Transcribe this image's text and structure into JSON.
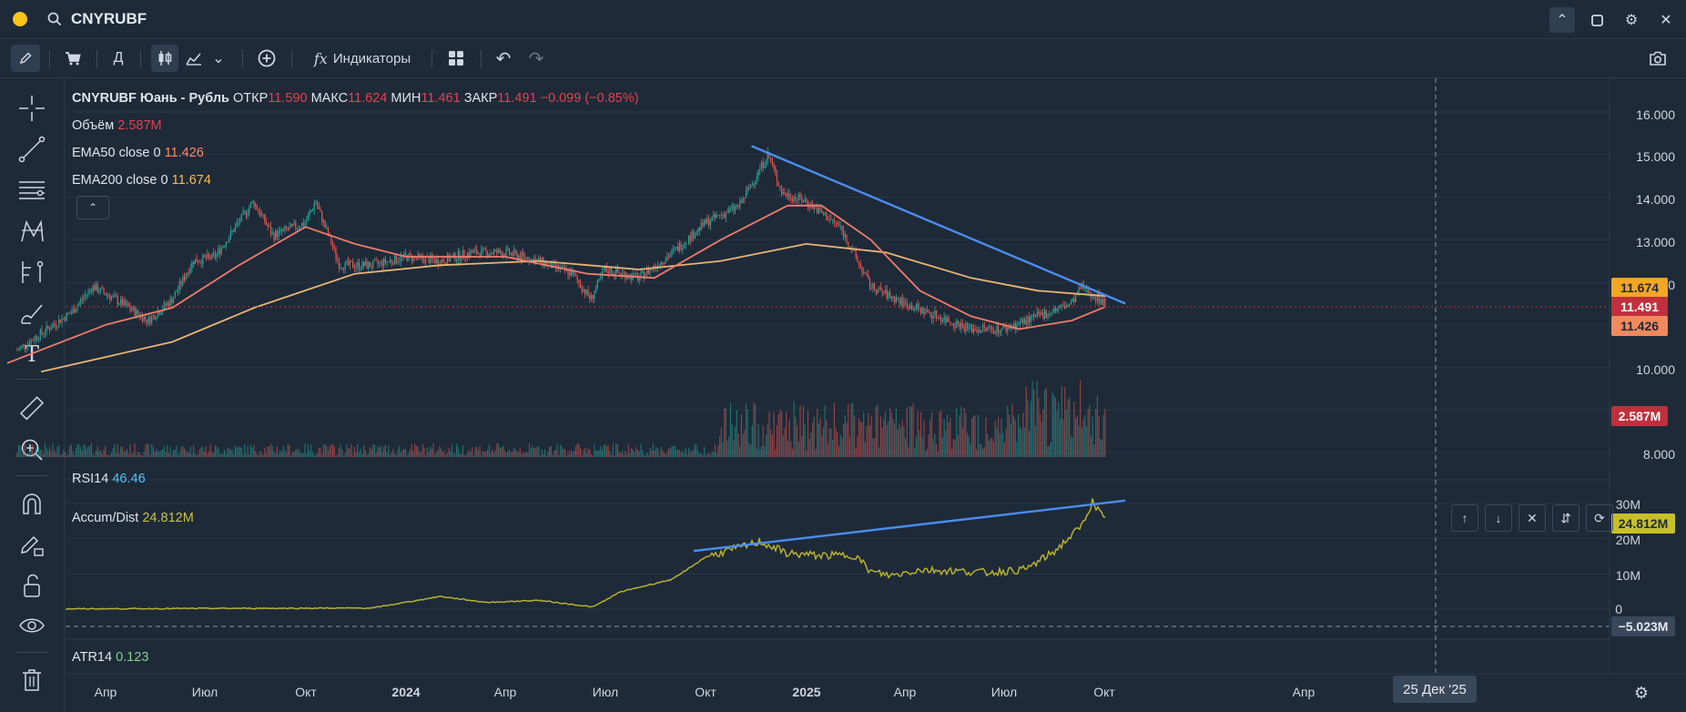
{
  "topbar": {
    "symbol": "CNYRUBF"
  },
  "toolbar": {
    "interval": "Д",
    "indicators_label": "Индикаторы"
  },
  "legend": {
    "name": "CNYRUBF Юань - Рубль",
    "open_label": "ОТКР",
    "open": "11.590",
    "high_label": "МАКС",
    "high": "11.624",
    "low_label": "МИН",
    "low": "11.461",
    "close_label": "ЗАКР",
    "close": "11.491",
    "change": "−0.099 (−0.85%)",
    "volume_label": "Объём",
    "volume": "2.587M",
    "ema50_label": "EMA50 close 0",
    "ema50": "11.426",
    "ema200_label": "EMA200 close 0",
    "ema200": "11.674",
    "rsi_label": "RSI14",
    "rsi": "46.46",
    "ad_label": "Accum/Dist",
    "ad": "24.812M",
    "atr_label": "ATR14",
    "atr": "0.123"
  },
  "price_axis": {
    "ticks": [
      "16.000",
      "15.000",
      "14.000",
      "13.000",
      "12.000",
      "10.000",
      "8.000"
    ],
    "tags": {
      "ema200": "11.674",
      "close": "11.491",
      "ema50": "11.426",
      "volume": "2.587M"
    }
  },
  "ad_axis": {
    "ticks": [
      "30M",
      "20M",
      "10M",
      "0"
    ],
    "tags": {
      "ad": "24.812M",
      "crosshair": "−5.023M"
    }
  },
  "time_axis": {
    "labels": [
      {
        "text": "Апр",
        "bold": false
      },
      {
        "text": "Июл",
        "bold": false
      },
      {
        "text": "Окт",
        "bold": false
      },
      {
        "text": "2024",
        "bold": true
      },
      {
        "text": "Апр",
        "bold": false
      },
      {
        "text": "Июл",
        "bold": false
      },
      {
        "text": "Окт",
        "bold": false
      },
      {
        "text": "2025",
        "bold": true
      },
      {
        "text": "Апр",
        "bold": false
      },
      {
        "text": "Июл",
        "bold": false
      },
      {
        "text": "Окт",
        "bold": false
      },
      {
        "text": "Апр",
        "bold": false
      }
    ],
    "crosshair_date": "25 Дек '25"
  },
  "colors": {
    "background": "#1e2a38",
    "up": "#26a69a",
    "down": "#ef5350",
    "ema50": "#f07c6c",
    "ema200": "#e8b574",
    "trendline": "#4a8df0",
    "ad_line": "#b8b030",
    "close_tag": "#c0303c",
    "ema200_tag": "#f5a623",
    "ema50_tag": "#f08a5d",
    "ad_tag": "#c6c028"
  },
  "chart_data": {
    "type": "candlestick",
    "symbol": "CNYRUBF",
    "name": "Юань - Рубль",
    "interval": "Д",
    "x_range": [
      "2023-01",
      "2026-04"
    ],
    "price_ylim": [
      8,
      16.5
    ],
    "price_path": [
      [
        "2023-01-10",
        10.4
      ],
      [
        "2023-02-01",
        10.8
      ],
      [
        "2023-03-01",
        11.3
      ],
      [
        "2023-03-20",
        11.9
      ],
      [
        "2023-04-10",
        11.6
      ],
      [
        "2023-05-10",
        11.1
      ],
      [
        "2023-06-01",
        11.6
      ],
      [
        "2023-06-20",
        12.5
      ],
      [
        "2023-07-10",
        12.6
      ],
      [
        "2023-08-14",
        13.9
      ],
      [
        "2023-09-01",
        13.1
      ],
      [
        "2023-10-01",
        13.4
      ],
      [
        "2023-10-10",
        13.9
      ],
      [
        "2023-11-01",
        12.4
      ],
      [
        "2023-12-01",
        12.4
      ],
      [
        "2024-01-01",
        12.6
      ],
      [
        "2024-02-01",
        12.5
      ],
      [
        "2024-03-01",
        12.7
      ],
      [
        "2024-04-01",
        12.7
      ],
      [
        "2024-05-01",
        12.5
      ],
      [
        "2024-06-01",
        12.2
      ],
      [
        "2024-06-18",
        11.6
      ],
      [
        "2024-07-01",
        12.3
      ],
      [
        "2024-08-01",
        12.1
      ],
      [
        "2024-09-01",
        12.7
      ],
      [
        "2024-10-01",
        13.4
      ],
      [
        "2024-11-01",
        13.8
      ],
      [
        "2024-11-27",
        15.0
      ],
      [
        "2024-12-10",
        14.1
      ],
      [
        "2025-01-01",
        13.9
      ],
      [
        "2025-02-01",
        13.3
      ],
      [
        "2025-03-01",
        11.9
      ],
      [
        "2025-04-01",
        11.5
      ],
      [
        "2025-05-01",
        11.2
      ],
      [
        "2025-06-01",
        10.9
      ],
      [
        "2025-07-01",
        10.9
      ],
      [
        "2025-08-01",
        11.2
      ],
      [
        "2025-09-01",
        11.5
      ],
      [
        "2025-09-10",
        11.9
      ],
      [
        "2025-10-02",
        11.49
      ]
    ],
    "ema50_path": [
      [
        "2023-01-01",
        10.1
      ],
      [
        "2023-04-01",
        11.0
      ],
      [
        "2023-06-01",
        11.4
      ],
      [
        "2023-08-01",
        12.4
      ],
      [
        "2023-10-01",
        13.3
      ],
      [
        "2023-11-15",
        12.9
      ],
      [
        "2024-01-01",
        12.6
      ],
      [
        "2024-04-01",
        12.6
      ],
      [
        "2024-06-15",
        12.2
      ],
      [
        "2024-08-15",
        12.1
      ],
      [
        "2024-10-15",
        13.0
      ],
      [
        "2024-12-15",
        13.8
      ],
      [
        "2025-01-15",
        13.8
      ],
      [
        "2025-03-01",
        13.0
      ],
      [
        "2025-04-15",
        11.8
      ],
      [
        "2025-06-01",
        11.2
      ],
      [
        "2025-07-15",
        10.9
      ],
      [
        "2025-09-01",
        11.1
      ],
      [
        "2025-10-02",
        11.426
      ]
    ],
    "ema200_path": [
      [
        "2023-02-01",
        9.9
      ],
      [
        "2023-06-01",
        10.6
      ],
      [
        "2023-08-15",
        11.4
      ],
      [
        "2023-11-15",
        12.2
      ],
      [
        "2024-02-01",
        12.4
      ],
      [
        "2024-05-01",
        12.5
      ],
      [
        "2024-08-01",
        12.3
      ],
      [
        "2024-10-15",
        12.5
      ],
      [
        "2025-01-01",
        12.9
      ],
      [
        "2025-03-15",
        12.7
      ],
      [
        "2025-06-01",
        12.1
      ],
      [
        "2025-08-01",
        11.8
      ],
      [
        "2025-10-02",
        11.674
      ]
    ],
    "price_trendline": [
      [
        "2024-11-12",
        15.2
      ],
      [
        "2025-10-20",
        11.5
      ]
    ],
    "ad_ylim": [
      -6,
      32
    ],
    "ad_path": [
      [
        "2023-01-01",
        0.0
      ],
      [
        "2023-07-01",
        0.2
      ],
      [
        "2023-12-01",
        0.3
      ],
      [
        "2024-02-01",
        3.6
      ],
      [
        "2024-03-15",
        1.9
      ],
      [
        "2024-05-01",
        2.5
      ],
      [
        "2024-06-20",
        0.6
      ],
      [
        "2024-07-15",
        4.9
      ],
      [
        "2024-09-01",
        8.5
      ],
      [
        "2024-10-01",
        14.8
      ],
      [
        "2024-11-20",
        19.1
      ],
      [
        "2024-12-15",
        15.8
      ],
      [
        "2025-01-15",
        15.2
      ],
      [
        "2025-02-15",
        15.3
      ],
      [
        "2025-03-01",
        10.6
      ],
      [
        "2025-03-20",
        9.5
      ],
      [
        "2025-04-15",
        11.2
      ],
      [
        "2025-05-20",
        10.8
      ],
      [
        "2025-06-15",
        10.4
      ],
      [
        "2025-07-20",
        11.2
      ],
      [
        "2025-08-01",
        13.4
      ],
      [
        "2025-08-15",
        16.1
      ],
      [
        "2025-09-10",
        23.5
      ],
      [
        "2025-09-20",
        30.6
      ],
      [
        "2025-10-02",
        24.812
      ]
    ],
    "ad_trendline": [
      [
        "2024-09-20",
        16.5
      ],
      [
        "2025-10-20",
        30.8
      ]
    ],
    "last": {
      "open": 11.59,
      "high": 11.624,
      "low": 11.461,
      "close": 11.491,
      "change": -0.099,
      "change_pct": -0.85,
      "volume_m": 2.587,
      "ema50": 11.426,
      "ema200": 11.674,
      "rsi14": 46.46,
      "ad_m": 24.812,
      "atr14": 0.123
    }
  }
}
